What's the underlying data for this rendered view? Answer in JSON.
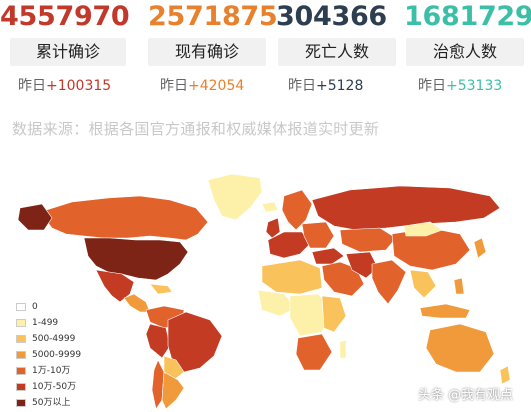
{
  "stats": [
    {
      "value": "4557970",
      "label": "累计确诊",
      "yesterday_prefix": "昨日",
      "yesterday_delta": "+100315",
      "color": "#c0392b"
    },
    {
      "value": "2571875",
      "label": "现有确诊",
      "yesterday_prefix": "昨日",
      "yesterday_delta": "+42054",
      "color": "#e8812d"
    },
    {
      "value": "304366",
      "label": "死亡人数",
      "yesterday_prefix": "昨日",
      "yesterday_delta": "+5128",
      "color": "#2c3e50"
    },
    {
      "value": "1681729",
      "label": "治愈人数",
      "yesterday_prefix": "昨日",
      "yesterday_delta": "+53133",
      "color": "#3dbfa7"
    }
  ],
  "source_text": "数据来源：根据各国官方通报和权威媒体报道实时更新",
  "legend": [
    {
      "label": "0",
      "color": "#ffffff"
    },
    {
      "label": "1-499",
      "color": "#fdf0a8"
    },
    {
      "label": "500-4999",
      "color": "#f9c25a"
    },
    {
      "label": "5000-9999",
      "color": "#f19a3c"
    },
    {
      "label": "1万-10万",
      "color": "#e2622c"
    },
    {
      "label": "10万-50万",
      "color": "#c23b22"
    },
    {
      "label": "50万以上",
      "color": "#7e2417"
    }
  ],
  "watermark": "头条 @我有观点"
}
